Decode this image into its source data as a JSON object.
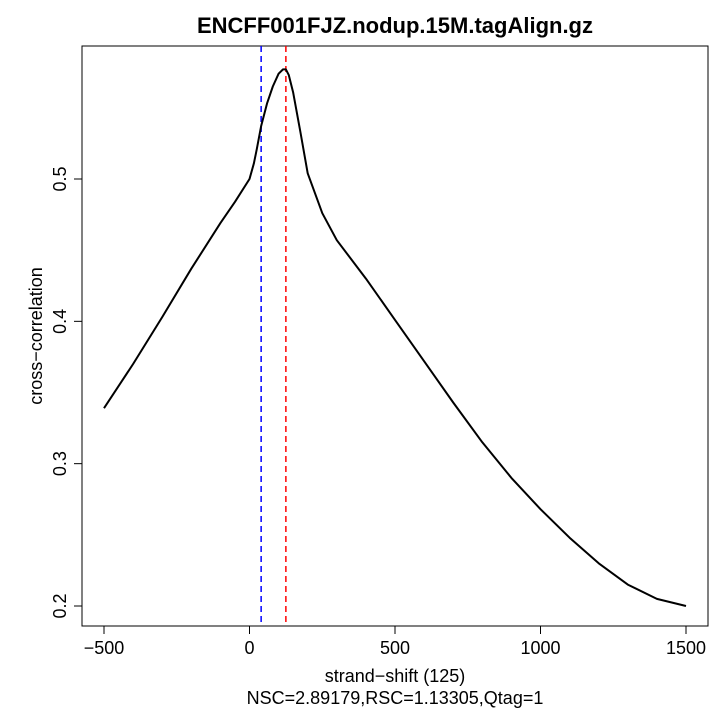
{
  "chart_data": {
    "type": "line",
    "title": "ENCFF001FJZ.nodup.15M.tagAlign.gz",
    "xlabel": "strand−shift (125)",
    "ylabel": "cross−correlation",
    "subtitle": "NSC=2.89179,RSC=1.13305,Qtag=1",
    "xlim": [
      -500,
      1500
    ],
    "ylim": [
      0.2,
      0.58
    ],
    "x_ticks": [
      -500,
      0,
      500,
      1000,
      1500
    ],
    "x_tick_labels": [
      "−500",
      "0",
      "500",
      "1000",
      "1500"
    ],
    "y_ticks": [
      0.2,
      0.3,
      0.4,
      0.5
    ],
    "y_tick_labels": [
      "0.2",
      "0.3",
      "0.4",
      "0.5"
    ],
    "grid": false,
    "series": [
      {
        "color": "#000000",
        "x": [
          -500,
          -400,
          -300,
          -200,
          -100,
          -50,
          0,
          15,
          25,
          40,
          60,
          80,
          100,
          115,
          125,
          135,
          150,
          175,
          200,
          250,
          300,
          400,
          500,
          600,
          700,
          800,
          900,
          1000,
          1100,
          1200,
          1300,
          1400,
          1500
        ],
        "y": [
          0.339,
          0.37,
          0.403,
          0.437,
          0.469,
          0.484,
          0.5,
          0.511,
          0.521,
          0.537,
          0.553,
          0.565,
          0.574,
          0.577,
          0.577,
          0.573,
          0.561,
          0.533,
          0.504,
          0.476,
          0.457,
          0.43,
          0.401,
          0.372,
          0.343,
          0.315,
          0.29,
          0.268,
          0.248,
          0.23,
          0.215,
          0.205,
          0.2
        ]
      }
    ],
    "vlines": [
      {
        "x": 40,
        "color": "#0000ff",
        "style": "dashed"
      },
      {
        "x": 125,
        "color": "#ff0000",
        "style": "dashed"
      }
    ]
  }
}
